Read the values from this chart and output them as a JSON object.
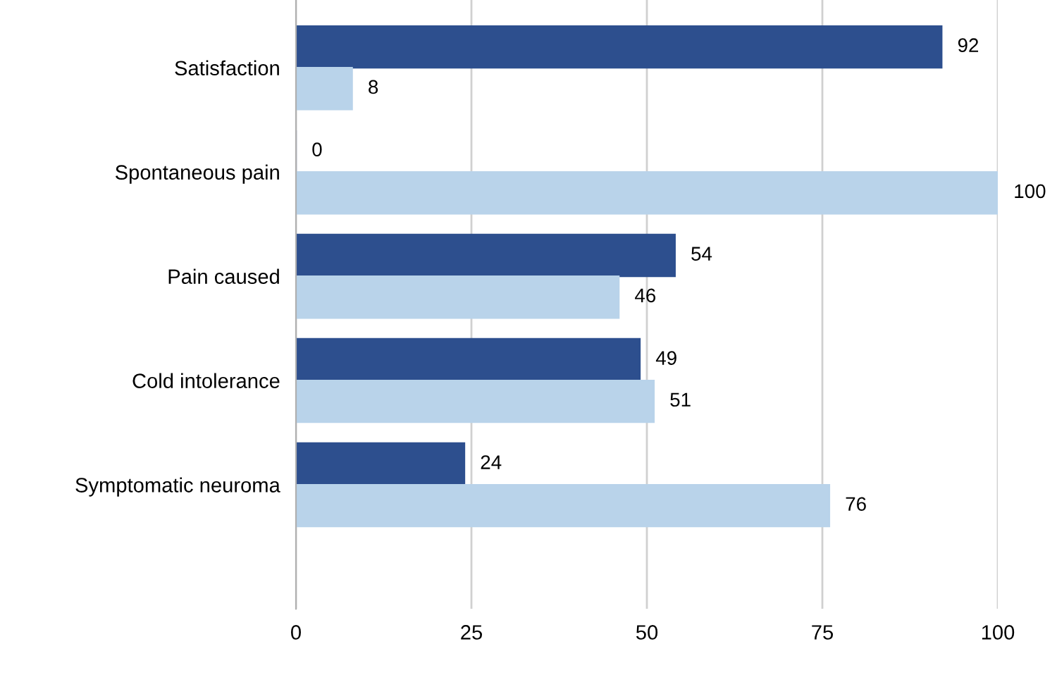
{
  "chart_data": {
    "type": "bar",
    "orientation": "horizontal",
    "categories": [
      "Satisfaction",
      "Spontaneous pain",
      "Pain caused",
      "Cold intolerance",
      "Symptomatic neuroma"
    ],
    "series": [
      {
        "color": "#2d4f8e",
        "values": [
          92,
          0,
          54,
          49,
          24
        ]
      },
      {
        "color": "#b9d3ea",
        "values": [
          8,
          100,
          46,
          51,
          76
        ]
      }
    ],
    "xlim": [
      0,
      100
    ],
    "xticks": [
      0,
      25,
      50,
      75,
      100
    ],
    "grid": "x",
    "data_labels": true
  }
}
